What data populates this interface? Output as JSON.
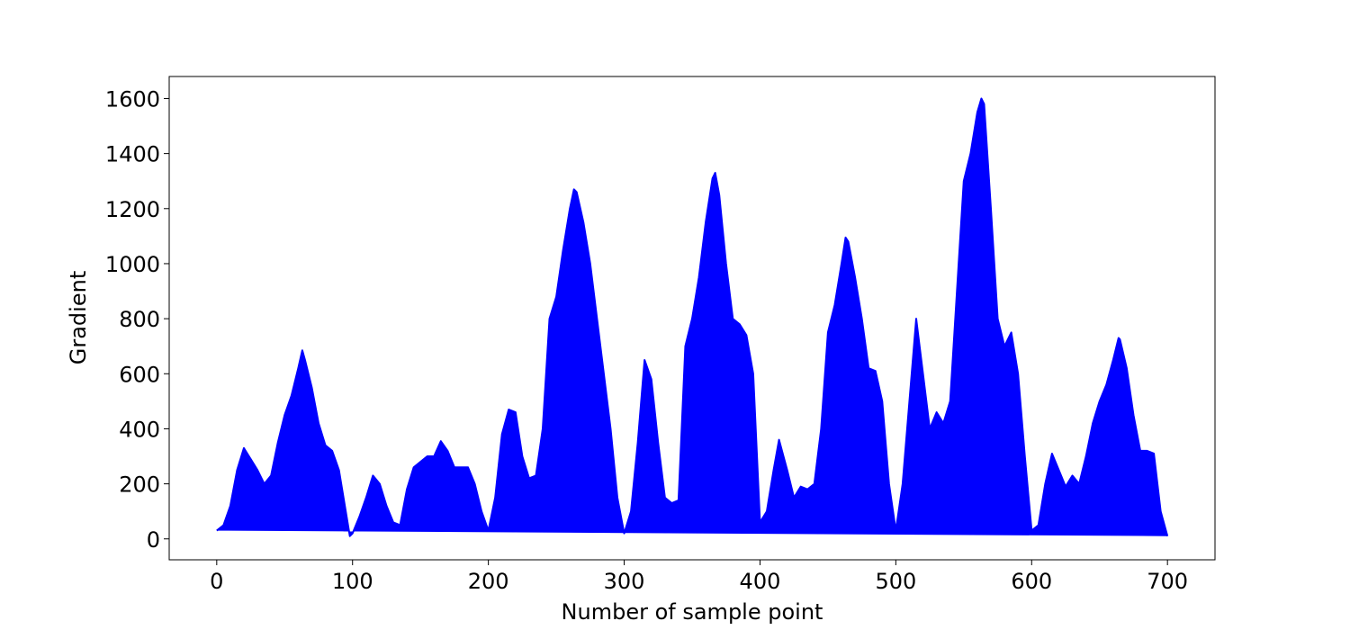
{
  "chart_data": {
    "type": "area",
    "xlabel": "Number of sample point",
    "ylabel": "Gradient",
    "x": [
      0,
      5,
      10,
      15,
      20,
      25,
      30,
      35,
      40,
      45,
      50,
      55,
      60,
      63,
      65,
      70,
      75,
      80,
      85,
      90,
      95,
      98,
      100,
      105,
      110,
      115,
      120,
      125,
      130,
      135,
      140,
      145,
      150,
      155,
      160,
      165,
      170,
      175,
      180,
      185,
      190,
      195,
      200,
      205,
      210,
      215,
      220,
      225,
      230,
      235,
      240,
      245,
      250,
      255,
      260,
      263,
      265,
      270,
      275,
      280,
      285,
      290,
      295,
      300,
      305,
      310,
      315,
      320,
      325,
      330,
      335,
      340,
      345,
      350,
      355,
      360,
      365,
      367,
      370,
      375,
      380,
      385,
      390,
      395,
      400,
      405,
      410,
      414,
      420,
      425,
      430,
      435,
      440,
      445,
      450,
      455,
      460,
      463,
      465,
      470,
      475,
      480,
      485,
      490,
      495,
      500,
      505,
      510,
      515,
      520,
      525,
      530,
      535,
      540,
      545,
      550,
      555,
      560,
      563,
      565,
      570,
      575,
      580,
      585,
      590,
      595,
      600,
      605,
      610,
      615,
      620,
      625,
      630,
      635,
      640,
      645,
      650,
      655,
      660,
      664,
      665,
      670,
      675,
      680,
      685,
      690,
      695,
      700
    ],
    "series": [
      {
        "color": "#0000ff",
        "values": [
          30,
          50,
          120,
          250,
          330,
          290,
          250,
          200,
          230,
          350,
          450,
          520,
          620,
          685,
          650,
          550,
          420,
          340,
          320,
          250,
          100,
          10,
          20,
          80,
          150,
          230,
          200,
          120,
          60,
          50,
          180,
          260,
          280,
          300,
          300,
          355,
          320,
          260,
          260,
          260,
          200,
          100,
          30,
          150,
          380,
          470,
          460,
          300,
          220,
          230,
          400,
          800,
          880,
          1050,
          1200,
          1270,
          1260,
          1150,
          1000,
          800,
          600,
          400,
          150,
          20,
          100,
          350,
          650,
          580,
          350,
          150,
          130,
          140,
          700,
          800,
          950,
          1150,
          1310,
          1330,
          1250,
          1000,
          800,
          780,
          740,
          600,
          60,
          100,
          250,
          360,
          250,
          150,
          190,
          180,
          200,
          400,
          750,
          850,
          1000,
          1095,
          1080,
          950,
          800,
          620,
          610,
          500,
          200,
          30,
          200,
          500,
          800,
          600,
          400,
          460,
          420,
          500,
          900,
          1300,
          1400,
          1550,
          1600,
          1580,
          1200,
          800,
          700,
          750,
          600,
          300,
          30,
          50,
          200,
          310,
          250,
          190,
          230,
          200,
          300,
          420,
          500,
          560,
          650,
          730,
          725,
          620,
          450,
          320,
          320,
          310,
          100,
          10
        ]
      }
    ],
    "xlim": [
      -35,
      735
    ],
    "ylim": [
      -76,
      1680
    ],
    "xticks": [
      0,
      100,
      200,
      300,
      400,
      500,
      600,
      700
    ],
    "yticks": [
      0,
      200,
      400,
      600,
      800,
      1000,
      1200,
      1400,
      1600
    ]
  }
}
